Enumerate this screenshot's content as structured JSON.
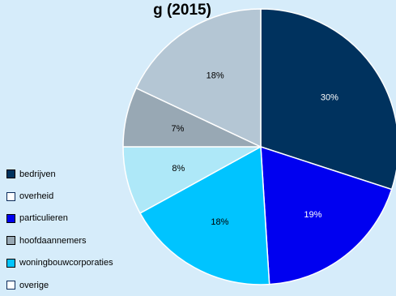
{
  "chart_data": {
    "type": "pie",
    "title": "g (2015)",
    "slices": [
      {
        "label": "bedrijven",
        "value": 30,
        "value_label": "30%",
        "color": "#00325e",
        "text_color": "#ffffff"
      },
      {
        "label": "particulieren",
        "value": 19,
        "value_label": "19%",
        "color": "#0000f0",
        "text_color": "#ffffff"
      },
      {
        "label": "woningbouwcorporaties",
        "value": 18,
        "value_label": "18%",
        "color": "#00c4ff",
        "text_color": "#000000"
      },
      {
        "label": "overige",
        "value": 8,
        "value_label": "8%",
        "color": "#aee8f8",
        "text_color": "#000000"
      },
      {
        "label": "hoofdaannemers",
        "value": 7,
        "value_label": "7%",
        "color": "#98a8b4",
        "text_color": "#000000"
      },
      {
        "label": "overheid",
        "value": 18,
        "value_label": "18%",
        "color": "#b4c6d4",
        "text_color": "#000000"
      }
    ],
    "start_angle_deg": 0,
    "direction": "clockwise",
    "slice_border_color": "#ffffff",
    "legend": {
      "placement": "left-bottom",
      "items": [
        {
          "label": "bedrijven",
          "swatch_color": "#00325e",
          "style": "filled"
        },
        {
          "label": "overheid",
          "swatch_color": "#ffffff",
          "style": "outline"
        },
        {
          "label": "particulieren",
          "swatch_color": "#0000f0",
          "style": "filled"
        },
        {
          "label": "hoofdaannemers",
          "swatch_color": "#98a8b4",
          "style": "filled"
        },
        {
          "label": "woningbouwcorporaties",
          "swatch_color": "#00c4ff",
          "style": "filled"
        },
        {
          "label": "overige",
          "swatch_color": "#ffffff",
          "style": "outline"
        }
      ]
    }
  },
  "colors": {
    "background": "#d6ecfa"
  }
}
